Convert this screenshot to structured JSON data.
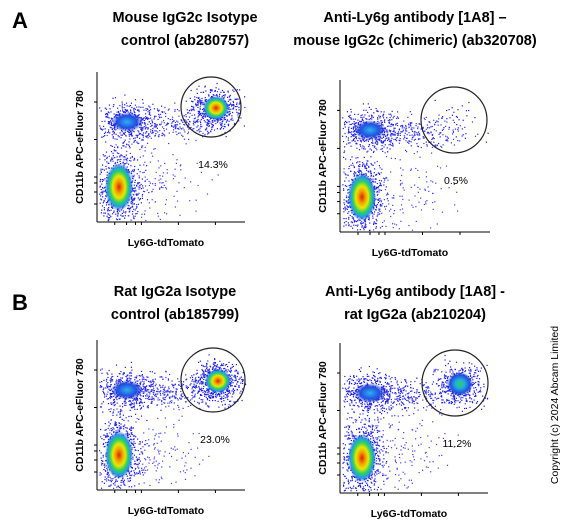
{
  "figure": {
    "rows": [
      {
        "label": "A",
        "plots": [
          {
            "title": [
              "Mouse IgG2c Isotype",
              "control (ab280757)"
            ],
            "y_label": "CD11b APC-eFluor 780",
            "x_label": "Ly6G-tdTomato",
            "gate": "14.3%"
          },
          {
            "title": [
              "Anti-Ly6g antibody [1A8] –",
              "mouse IgG2c (chimeric) (ab320708)"
            ],
            "y_label": "CD11b APC-eFluor 780",
            "x_label": "Ly6G-tdTomato",
            "gate": "0.5%"
          }
        ]
      },
      {
        "label": "B",
        "plots": [
          {
            "title": [
              "Rat IgG2a Isotype",
              "control (ab185799)"
            ],
            "y_label": "CD11b APC-eFluor 780",
            "x_label": "Ly6G-tdTomato",
            "gate": "23.0%"
          },
          {
            "title": [
              "Anti-Ly6g antibody [1A8] -",
              "rat IgG2a (ab210204)"
            ],
            "y_label": "CD11b APC-eFluor 780",
            "x_label": "Ly6G-tdTomato",
            "gate": "11.2%"
          }
        ]
      }
    ],
    "copyright": "Copyright (c) 2024 Abcam Limited"
  }
}
